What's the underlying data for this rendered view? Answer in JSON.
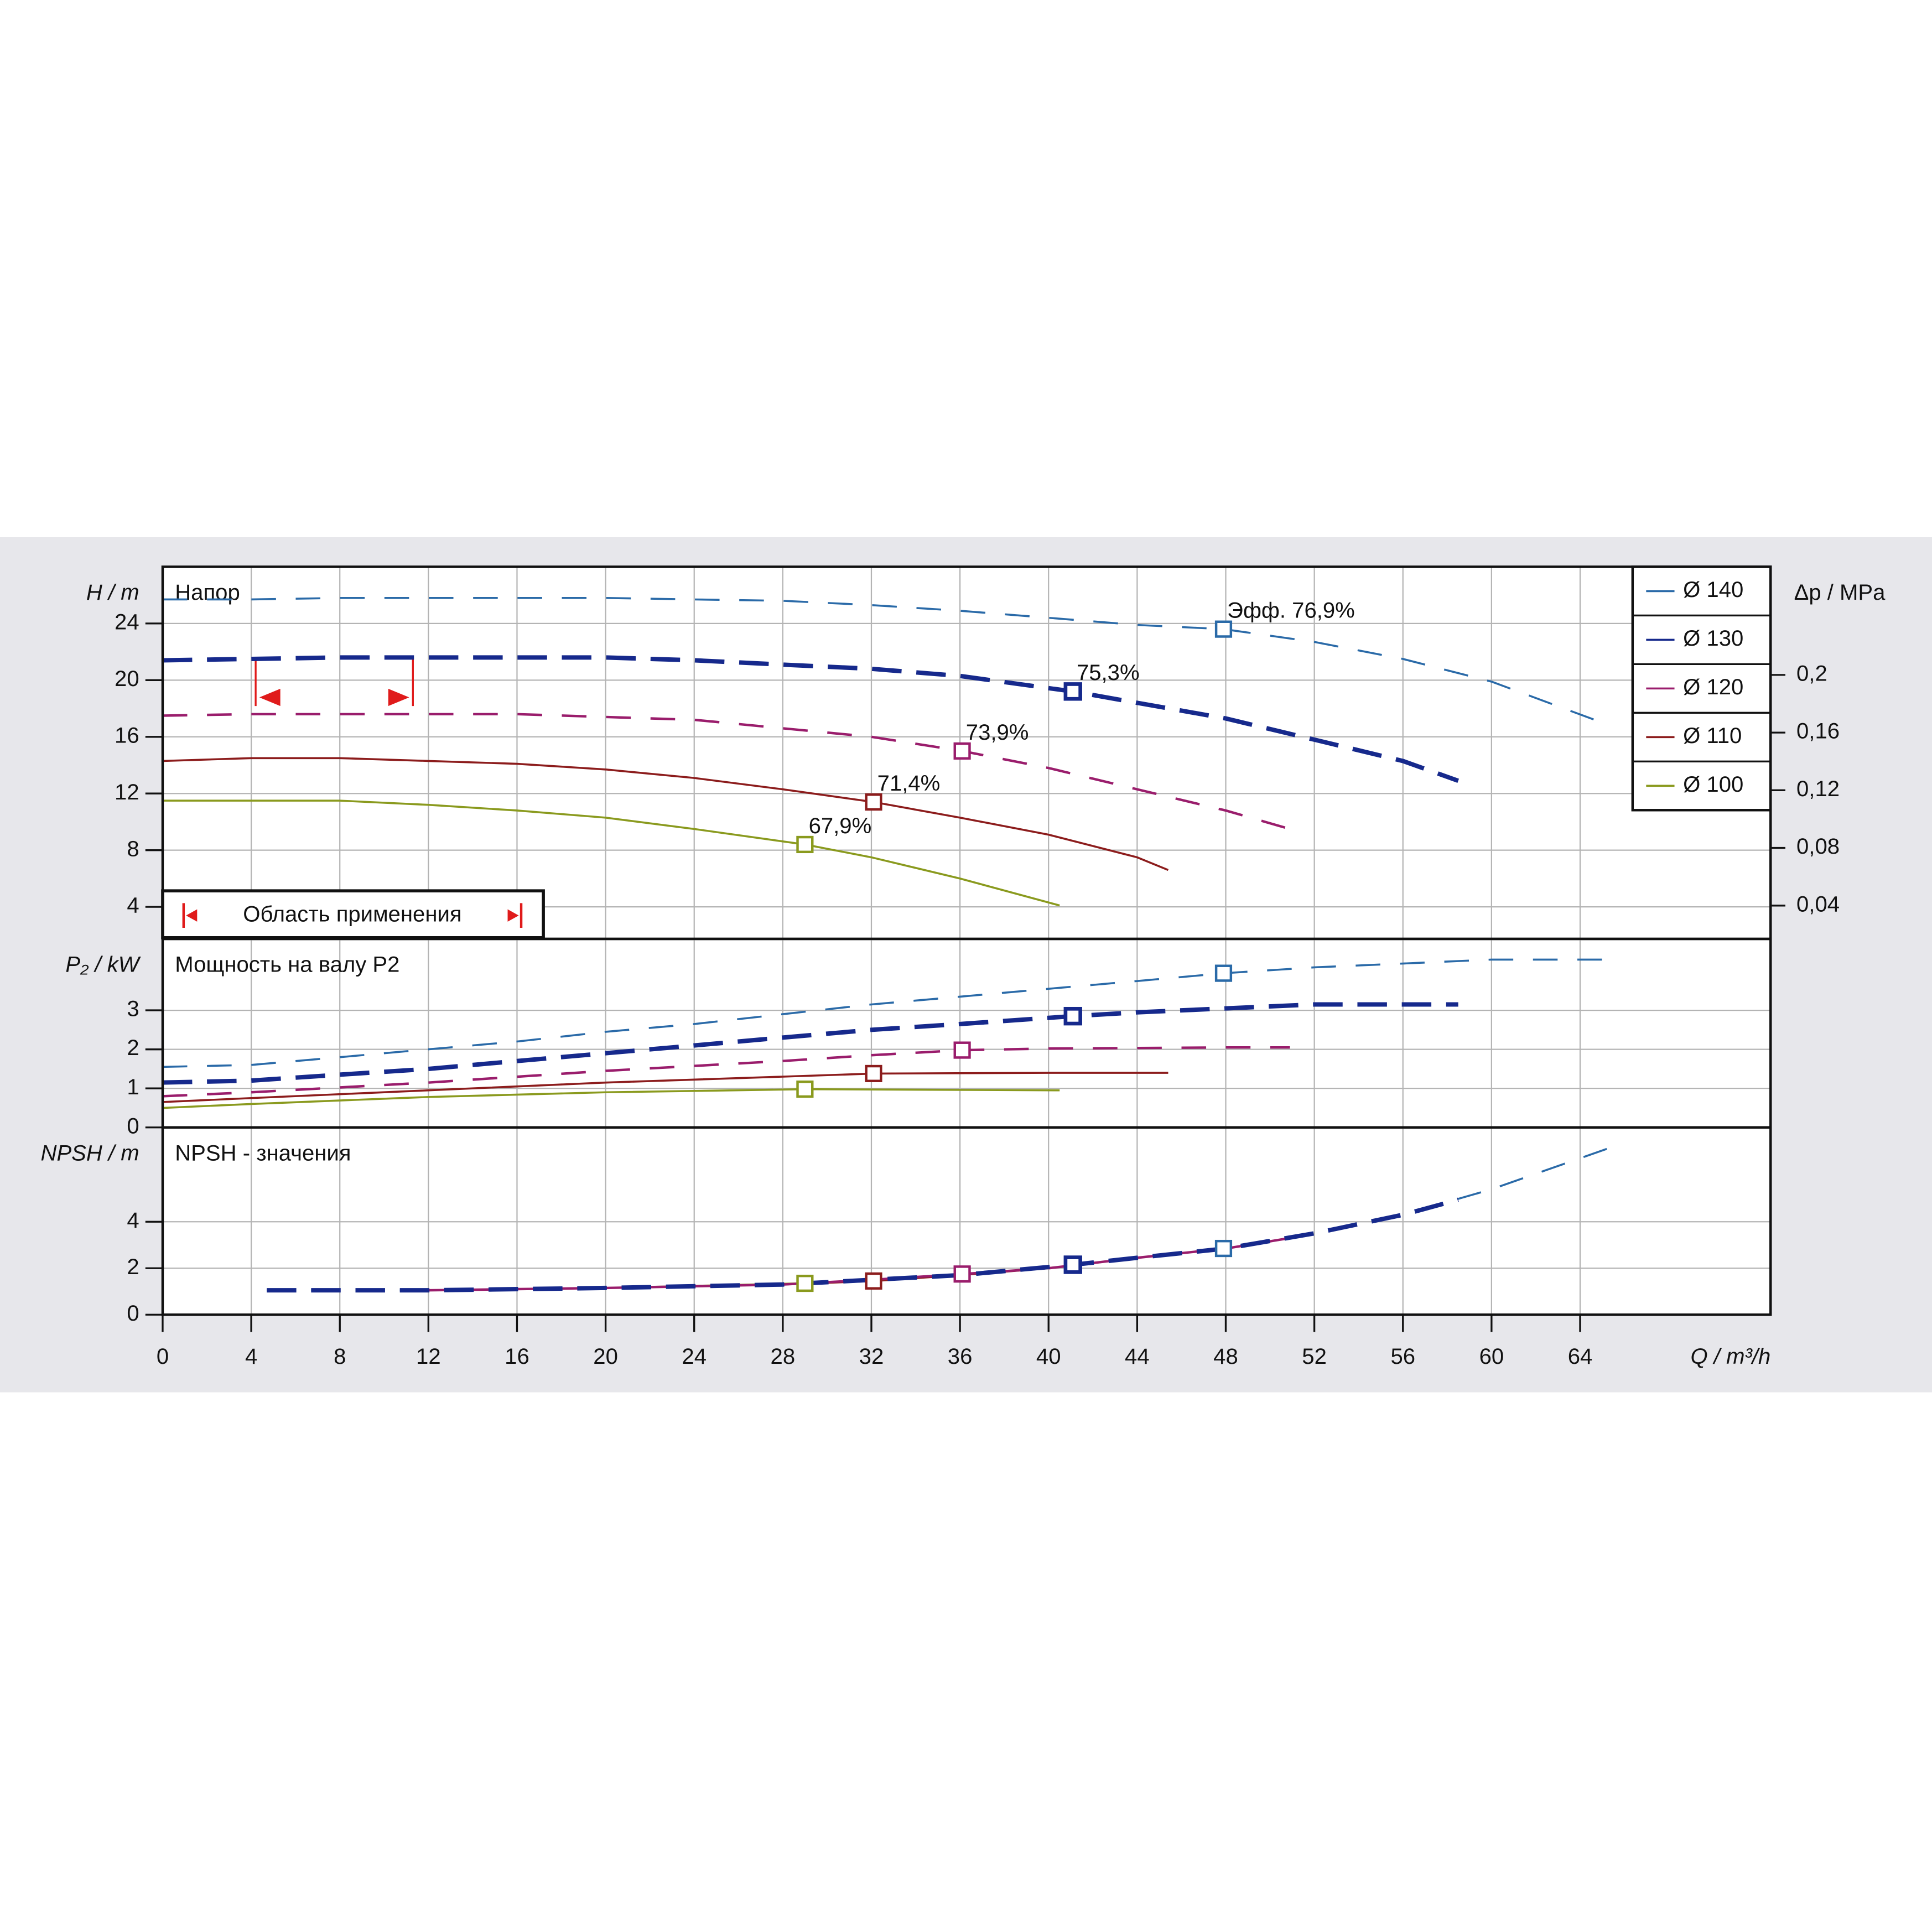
{
  "chart_data": [
    {
      "type": "line",
      "subtitle": "Напор",
      "ylabel": "H / m",
      "y2label": "Δp / MPa",
      "xlim": [
        0,
        72.6
      ],
      "ylim": [
        1.74,
        28
      ],
      "yticks": [
        4,
        8,
        12,
        16,
        20,
        24
      ],
      "y2lim": [
        0.0169,
        0.275
      ],
      "y2ticks": [
        {
          "value": 0.04,
          "label": "0,04"
        },
        {
          "value": 0.08,
          "label": "0,08"
        },
        {
          "value": 0.12,
          "label": "0,12"
        },
        {
          "value": 0.16,
          "label": "0,16"
        },
        {
          "value": 0.2,
          "label": "0,2"
        }
      ],
      "grid": true,
      "legend": "upper right",
      "range": {
        "label": "Область применения",
        "x": [
          4.2,
          11.3
        ]
      },
      "series": [
        {
          "name": "Ø 140",
          "color": "#2a6aa8",
          "line_style": "dashed",
          "x": [
            0,
            4,
            8,
            12,
            16,
            20,
            24,
            28,
            32,
            36,
            40,
            44,
            47.9,
            52,
            56,
            60,
            65
          ],
          "values": [
            25.7,
            25.7,
            25.8,
            25.8,
            25.8,
            25.8,
            25.7,
            25.6,
            25.3,
            24.9,
            24.4,
            23.9,
            23.6,
            22.7,
            21.5,
            19.9,
            17.0
          ],
          "duty": {
            "x": 47.9,
            "value": 23.6,
            "label": "Эфф.  76,9%"
          }
        },
        {
          "name": "Ø 130",
          "color": "#16298c",
          "line_style": "dashed",
          "x": [
            0,
            4,
            8,
            12,
            16,
            20,
            24,
            28,
            32,
            36,
            41.1,
            44,
            48,
            52,
            56,
            58.5
          ],
          "values": [
            21.4,
            21.5,
            21.6,
            21.6,
            21.6,
            21.6,
            21.4,
            21.1,
            20.8,
            20.3,
            19.2,
            18.4,
            17.3,
            15.8,
            14.3,
            12.9
          ],
          "duty": {
            "x": 41.1,
            "value": 19.2,
            "label": "75,3%"
          }
        },
        {
          "name": "Ø 120",
          "color": "#9a1d6c",
          "line_style": "dashed",
          "x": [
            0,
            4,
            8,
            12,
            16,
            20,
            24,
            28,
            32,
            36.1,
            40,
            44,
            48,
            50.9
          ],
          "values": [
            17.5,
            17.6,
            17.6,
            17.6,
            17.6,
            17.4,
            17.2,
            16.6,
            16.0,
            15.0,
            13.8,
            12.3,
            10.8,
            9.5
          ],
          "duty": {
            "x": 36.1,
            "value": 15.0,
            "label": "73,9%"
          }
        },
        {
          "name": "Ø 110",
          "color": "#8c1c1c",
          "line_style": "solid",
          "x": [
            0,
            4,
            8,
            12,
            16,
            20,
            24,
            28,
            32.1,
            36,
            40,
            44,
            45.4
          ],
          "values": [
            14.3,
            14.5,
            14.5,
            14.3,
            14.1,
            13.7,
            13.1,
            12.3,
            11.4,
            10.3,
            9.1,
            7.5,
            6.6
          ],
          "duty": {
            "x": 32.1,
            "value": 11.4,
            "label": "71,4%"
          }
        },
        {
          "name": "Ø 100",
          "color": "#8a9a1e",
          "line_style": "solid",
          "x": [
            0,
            4,
            8,
            12,
            16,
            20,
            24,
            29,
            32,
            36,
            40.5
          ],
          "values": [
            11.5,
            11.5,
            11.5,
            11.2,
            10.8,
            10.3,
            9.5,
            8.4,
            7.5,
            6.0,
            4.1
          ],
          "duty": {
            "x": 29,
            "value": 8.4,
            "label": "67,9%"
          }
        }
      ]
    },
    {
      "type": "line",
      "subtitle": "Мощность на валу P2",
      "ylabel": "P₂ / kW",
      "xlim": [
        0,
        72.6
      ],
      "ylim": [
        0,
        4.83
      ],
      "yticks": [
        0,
        1,
        2,
        3
      ],
      "grid": true,
      "series": [
        {
          "name": "Ø 140",
          "color": "#2a6aa8",
          "line_style": "dashed",
          "x": [
            0,
            4,
            8,
            12,
            16,
            20,
            24,
            28,
            32,
            36,
            40,
            44,
            47.9,
            52,
            56,
            60,
            65.4
          ],
          "values": [
            1.55,
            1.6,
            1.8,
            2.0,
            2.2,
            2.45,
            2.65,
            2.9,
            3.15,
            3.35,
            3.55,
            3.75,
            3.95,
            4.1,
            4.2,
            4.3,
            4.3
          ],
          "duty": {
            "x": 47.9,
            "value": 3.95
          }
        },
        {
          "name": "Ø 130",
          "color": "#16298c",
          "line_style": "dashed",
          "x": [
            0,
            4,
            8,
            12,
            16,
            20,
            24,
            28,
            32,
            36,
            41.1,
            44,
            48,
            52,
            58.5
          ],
          "values": [
            1.15,
            1.2,
            1.35,
            1.5,
            1.7,
            1.9,
            2.1,
            2.3,
            2.5,
            2.65,
            2.85,
            2.95,
            3.05,
            3.15,
            3.15
          ],
          "duty": {
            "x": 41.1,
            "value": 2.85
          }
        },
        {
          "name": "Ø 120",
          "color": "#9a1d6c",
          "line_style": "dashed",
          "x": [
            0,
            4,
            12,
            20,
            28,
            32,
            36.1,
            40,
            48,
            50.9
          ],
          "values": [
            0.8,
            0.9,
            1.15,
            1.45,
            1.7,
            1.85,
            1.98,
            2.02,
            2.05,
            2.05
          ],
          "duty": {
            "x": 36.1,
            "value": 1.98
          }
        },
        {
          "name": "Ø 110",
          "color": "#8c1c1c",
          "line_style": "solid",
          "x": [
            0,
            4,
            12,
            20,
            28,
            32.1,
            40,
            45.4
          ],
          "values": [
            0.65,
            0.75,
            0.95,
            1.15,
            1.3,
            1.38,
            1.4,
            1.4
          ],
          "duty": {
            "x": 32.1,
            "value": 1.38
          }
        },
        {
          "name": "Ø 100",
          "color": "#8a9a1e",
          "line_style": "solid",
          "x": [
            0,
            4,
            12,
            20,
            29,
            40.5
          ],
          "values": [
            0.5,
            0.6,
            0.78,
            0.9,
            0.98,
            0.95
          ],
          "duty": {
            "x": 29,
            "value": 0.98
          }
        }
      ]
    },
    {
      "type": "line",
      "subtitle": "NPSH - значения",
      "ylabel": "NPSH / m",
      "xlabel": "Q / m³/h",
      "xlim": [
        0,
        72.6
      ],
      "ylim": [
        0,
        8.06
      ],
      "yticks": [
        0,
        2,
        4
      ],
      "xticks": [
        0,
        4,
        8,
        12,
        16,
        20,
        24,
        28,
        32,
        36,
        40,
        44,
        48,
        52,
        56,
        60,
        64
      ],
      "grid": true,
      "series": [
        {
          "name": "Ø 140",
          "color": "#2a6aa8",
          "line_style": "dashed",
          "x": [
            4.7,
            12,
            20,
            28,
            32,
            36,
            40,
            44,
            47.9,
            52,
            56,
            60,
            66
          ],
          "values": [
            1.05,
            1.05,
            1.15,
            1.3,
            1.5,
            1.7,
            2.0,
            2.45,
            2.85,
            3.5,
            4.3,
            5.4,
            7.4
          ],
          "duty": {
            "x": 47.9,
            "value": 2.85
          }
        },
        {
          "name": "Ø 130",
          "color": "#16298c",
          "line_style": "dashed",
          "x": [
            4.7,
            12,
            20,
            28,
            32,
            36,
            41.1,
            44,
            48,
            52,
            56,
            58.5
          ],
          "values": [
            1.05,
            1.05,
            1.15,
            1.3,
            1.5,
            1.7,
            2.15,
            2.45,
            2.85,
            3.5,
            4.3,
            4.95
          ],
          "duty": {
            "x": 41.1,
            "value": 2.15
          }
        },
        {
          "name": "Ø 120",
          "color": "#9a1d6c",
          "line_style": "dashed",
          "x": [
            12,
            20,
            28,
            32,
            36.1,
            40,
            44,
            48,
            50.9
          ],
          "values": [
            1.05,
            1.15,
            1.3,
            1.5,
            1.75,
            2.0,
            2.45,
            2.85,
            3.3
          ],
          "duty": {
            "x": 36.1,
            "value": 1.75
          }
        },
        {
          "name": "Ø 110",
          "color": "#8c1c1c",
          "line_style": "solid",
          "x": [
            12,
            20,
            28,
            32.1,
            36,
            40,
            45.4
          ],
          "values": [
            1.05,
            1.15,
            1.3,
            1.45,
            1.7,
            2.0,
            2.6
          ],
          "duty": {
            "x": 32.1,
            "value": 1.45
          }
        },
        {
          "name": "Ø 100",
          "color": "#8a9a1e",
          "line_style": "solid",
          "x": [
            12,
            20,
            29,
            32,
            36,
            40.5
          ],
          "values": [
            1.05,
            1.15,
            1.35,
            1.5,
            1.7,
            2.05
          ],
          "duty": {
            "x": 29,
            "value": 1.35
          }
        }
      ]
    }
  ]
}
